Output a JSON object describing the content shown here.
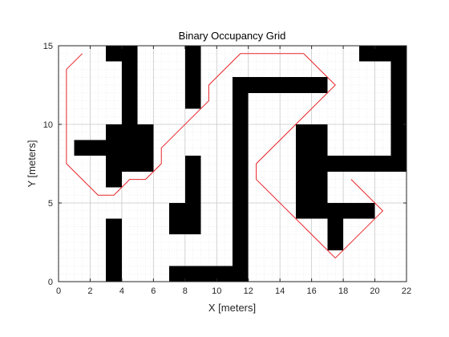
{
  "chart_data": {
    "type": "heatmap",
    "title": "Binary Occupancy Grid",
    "xlabel": "X [meters]",
    "ylabel": "Y [meters]",
    "xlim": [
      0,
      22
    ],
    "ylim": [
      0,
      15
    ],
    "xticks": [
      0,
      2,
      4,
      6,
      8,
      10,
      12,
      14,
      16,
      18,
      20,
      22
    ],
    "yticks": [
      0,
      5,
      10,
      15
    ],
    "minor_grid_spacing": 0.5,
    "grid": true,
    "colors": {
      "occupied": "#000000",
      "free": "#ffffff",
      "path": "#e8252a",
      "major_grid": "#c8c8c8",
      "minor_grid": "#e6e6e6",
      "axes": "#262626"
    },
    "occupied_cells": [
      {
        "x": [
          3,
          4
        ],
        "y": [
          14,
          15
        ]
      },
      {
        "x": [
          4,
          5
        ],
        "y": [
          7,
          15
        ]
      },
      {
        "x": [
          3,
          4
        ],
        "y": [
          6,
          10
        ]
      },
      {
        "x": [
          1,
          3
        ],
        "y": [
          8,
          9
        ]
      },
      {
        "x": [
          5,
          6
        ],
        "y": [
          7,
          10
        ]
      },
      {
        "x": [
          3,
          4
        ],
        "y": [
          0,
          4
        ]
      },
      {
        "x": [
          8,
          9
        ],
        "y": [
          11,
          15
        ]
      },
      {
        "x": [
          8,
          9
        ],
        "y": [
          3,
          8
        ]
      },
      {
        "x": [
          7,
          8
        ],
        "y": [
          3,
          5
        ]
      },
      {
        "x": [
          7,
          12
        ],
        "y": [
          0,
          1
        ]
      },
      {
        "x": [
          11,
          12
        ],
        "y": [
          1,
          13
        ]
      },
      {
        "x": [
          12,
          17
        ],
        "y": [
          12,
          13
        ]
      },
      {
        "x": [
          15,
          17
        ],
        "y": [
          4,
          10
        ]
      },
      {
        "x": [
          17,
          20
        ],
        "y": [
          4,
          5
        ]
      },
      {
        "x": [
          17,
          18
        ],
        "y": [
          2,
          4
        ]
      },
      {
        "x": [
          17,
          22
        ],
        "y": [
          7,
          8
        ]
      },
      {
        "x": [
          21,
          22
        ],
        "y": [
          8,
          15
        ]
      },
      {
        "x": [
          19,
          21
        ],
        "y": [
          14,
          15
        ]
      }
    ],
    "series": [
      {
        "x": [
          1.5,
          0.5,
          0.5,
          2.5,
          3.5,
          4.5,
          5.5,
          6.5,
          6.5,
          9.5,
          9.5,
          11.5,
          15.5,
          17.5,
          12.5,
          12.5,
          17.5,
          20.5,
          18.5
        ],
        "y": [
          14.5,
          13.5,
          7.5,
          5.5,
          5.5,
          6.5,
          6.5,
          7.5,
          8.5,
          11.5,
          12.5,
          14.5,
          14.5,
          12.5,
          7.5,
          6.5,
          1.5,
          4.5,
          6.5
        ]
      }
    ]
  }
}
